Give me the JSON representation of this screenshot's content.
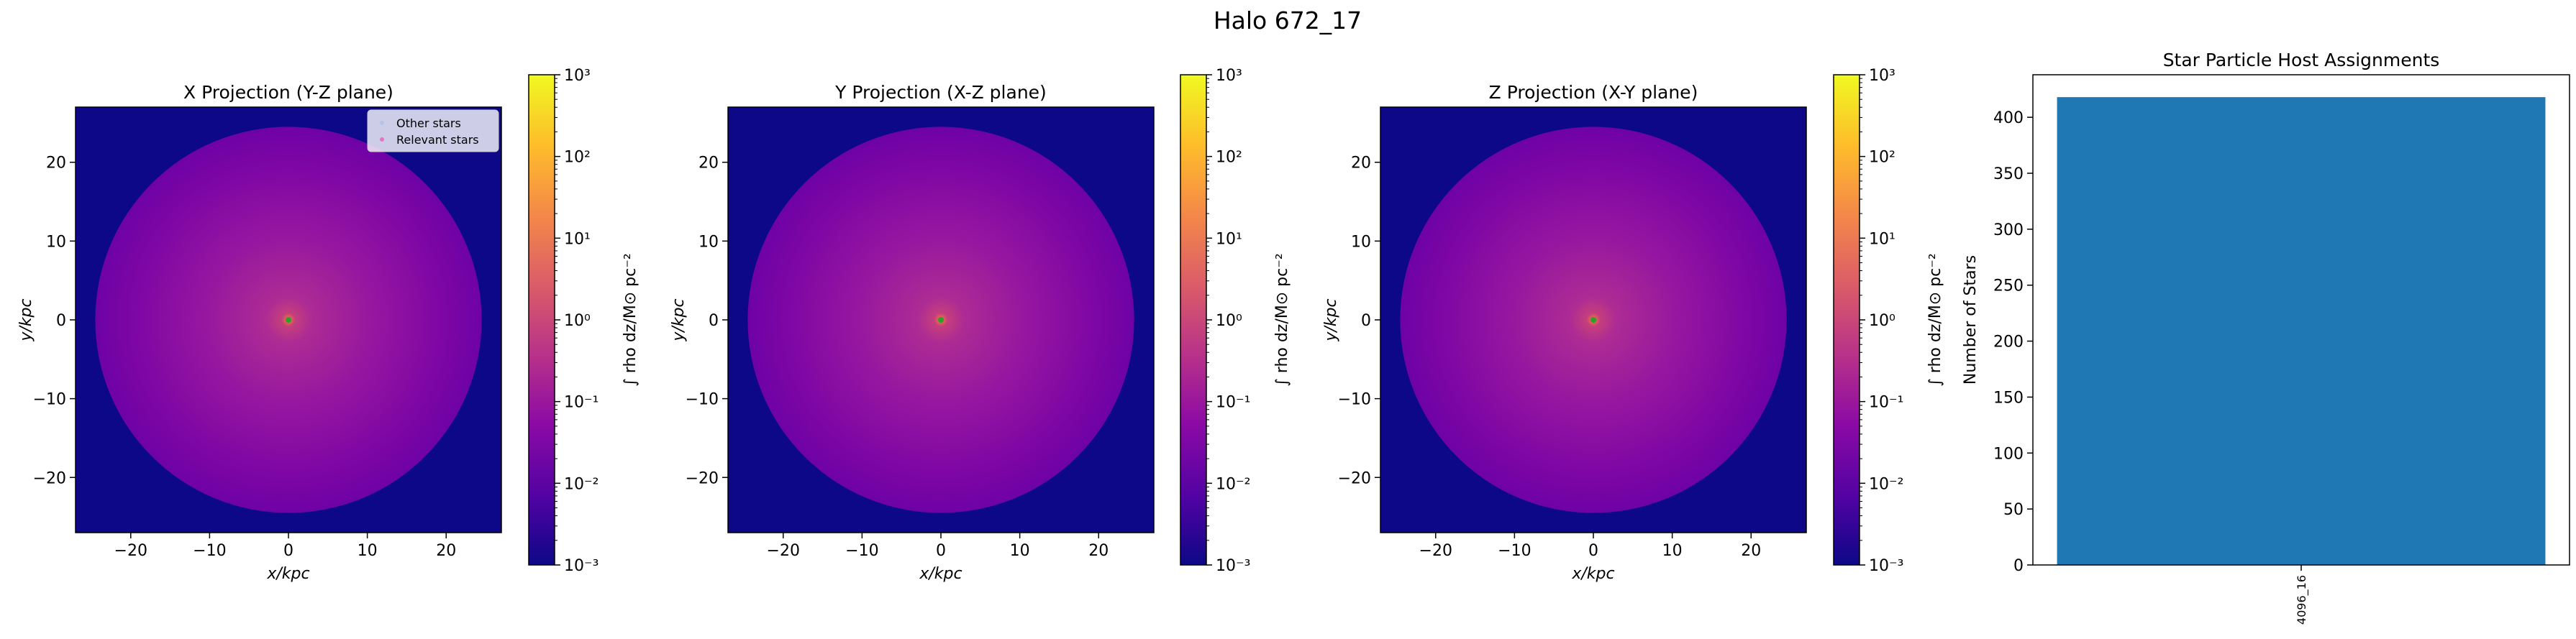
{
  "suptitle": "Halo 672_17",
  "colormap": [
    "#0d0887",
    "#5302a3",
    "#8b0aa5",
    "#b83289",
    "#db5c68",
    "#f48849",
    "#febd2a",
    "#f0f921"
  ],
  "colorbar": {
    "label": "∫ rho dz/M⊙ pc⁻²",
    "tick_labels": [
      "10⁻³",
      "10⁻²",
      "10⁻¹",
      "10⁰",
      "10¹",
      "10²",
      "10³"
    ],
    "range": [
      -3,
      3
    ],
    "scale": "log"
  },
  "projections": [
    {
      "title": "X Projection (Y-Z plane)",
      "xlabel": "x/kpc",
      "ylabel": "y/kpc",
      "xticks": [
        "−20",
        "−10",
        "0",
        "10",
        "20"
      ],
      "yticks": [
        "−20",
        "−10",
        "0",
        "10",
        "20"
      ],
      "legend": {
        "items": [
          "Other stars",
          "Relevant stars"
        ],
        "placement": "top-right"
      }
    },
    {
      "title": "Y Projection (X-Z plane)",
      "xlabel": "x/kpc",
      "ylabel": "y/kpc",
      "xticks": [
        "−20",
        "−10",
        "0",
        "10",
        "20"
      ],
      "yticks": [
        "−20",
        "−10",
        "0",
        "10",
        "20"
      ]
    },
    {
      "title": "Z Projection (X-Y plane)",
      "xlabel": "x/kpc",
      "ylabel": "y/kpc",
      "xticks": [
        "−20",
        "−10",
        "0",
        "10",
        "20"
      ],
      "yticks": [
        "−20",
        "−10",
        "0",
        "10",
        "20"
      ]
    }
  ],
  "chart_data": [
    {
      "type": "heatmap",
      "title": "X Projection (Y-Z plane)",
      "xlim": [
        -27,
        27
      ],
      "ylim": [
        -27,
        27
      ],
      "halo_radius_kpc": 24.5,
      "center": [
        0,
        0
      ]
    },
    {
      "type": "heatmap",
      "title": "Y Projection (X-Z plane)",
      "xlim": [
        -27,
        27
      ],
      "ylim": [
        -27,
        27
      ],
      "halo_radius_kpc": 24.5,
      "center": [
        0,
        0
      ]
    },
    {
      "type": "heatmap",
      "title": "Z Projection (X-Y plane)",
      "xlim": [
        -27,
        27
      ],
      "ylim": [
        -27,
        27
      ],
      "halo_radius_kpc": 24.5,
      "center": [
        0,
        0
      ]
    },
    {
      "type": "bar",
      "title": "Star Particle Host Assignments",
      "ylabel": "Number of Stars",
      "categories": [
        "4096_16"
      ],
      "values": [
        418
      ],
      "ylim": [
        0,
        438
      ],
      "yticks": [
        "0",
        "50",
        "100",
        "150",
        "200",
        "250",
        "300",
        "350",
        "400"
      ],
      "color": "#1f77b4"
    }
  ]
}
